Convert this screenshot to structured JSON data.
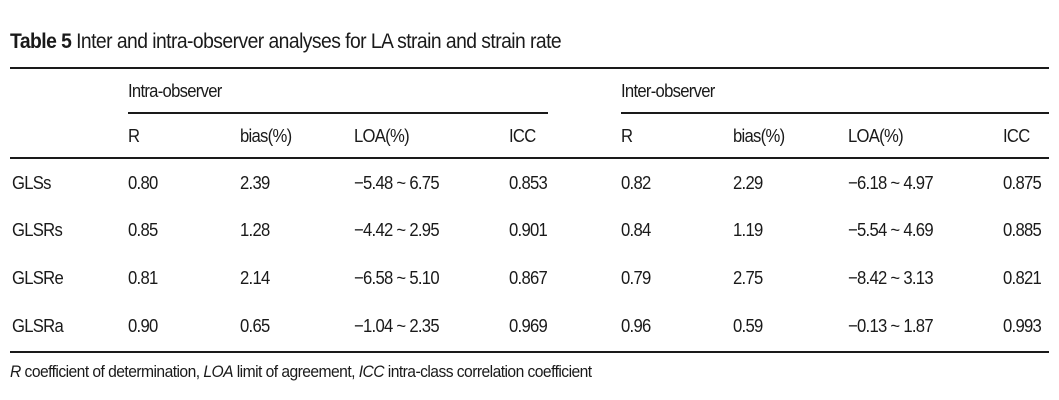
{
  "caption": {
    "label": "Table 5",
    "title": "Inter and intra-observer analyses for LA strain and strain rate"
  },
  "groups": [
    "Intra-observer",
    "Inter-observer"
  ],
  "columns": [
    "R",
    "bias(%)",
    "LOA(%)",
    "ICC",
    "R",
    "bias(%)",
    "LOA(%)",
    "ICC"
  ],
  "rows": [
    {
      "name": "GLSs",
      "cells": [
        "0.80",
        "2.39",
        "−5.48 ~ 6.75",
        "0.853",
        "0.82",
        "2.29",
        "−6.18 ~ 4.97",
        "0.875"
      ]
    },
    {
      "name": "GLSRs",
      "cells": [
        "0.85",
        "1.28",
        "−4.42 ~ 2.95",
        "0.901",
        "0.84",
        "1.19",
        "−5.54 ~ 4.69",
        "0.885"
      ]
    },
    {
      "name": "GLSRe",
      "cells": [
        "0.81",
        "2.14",
        "−6.58 ~ 5.10",
        "0.867",
        "0.79",
        "2.75",
        "−8.42 ~ 3.13",
        "0.821"
      ]
    },
    {
      "name": "GLSRa",
      "cells": [
        "0.90",
        "0.65",
        "−1.04 ~ 2.35",
        "0.969",
        "0.96",
        "0.59",
        "−0.13 ~ 1.87",
        "0.993"
      ]
    }
  ],
  "footnote": {
    "r_abbr": "R",
    "r_text": " coefficient of determination, ",
    "loa_abbr": "LOA",
    "loa_text": " limit of agreement, ",
    "icc_abbr": "ICC",
    "icc_text": " intra-class correlation coefficient"
  }
}
